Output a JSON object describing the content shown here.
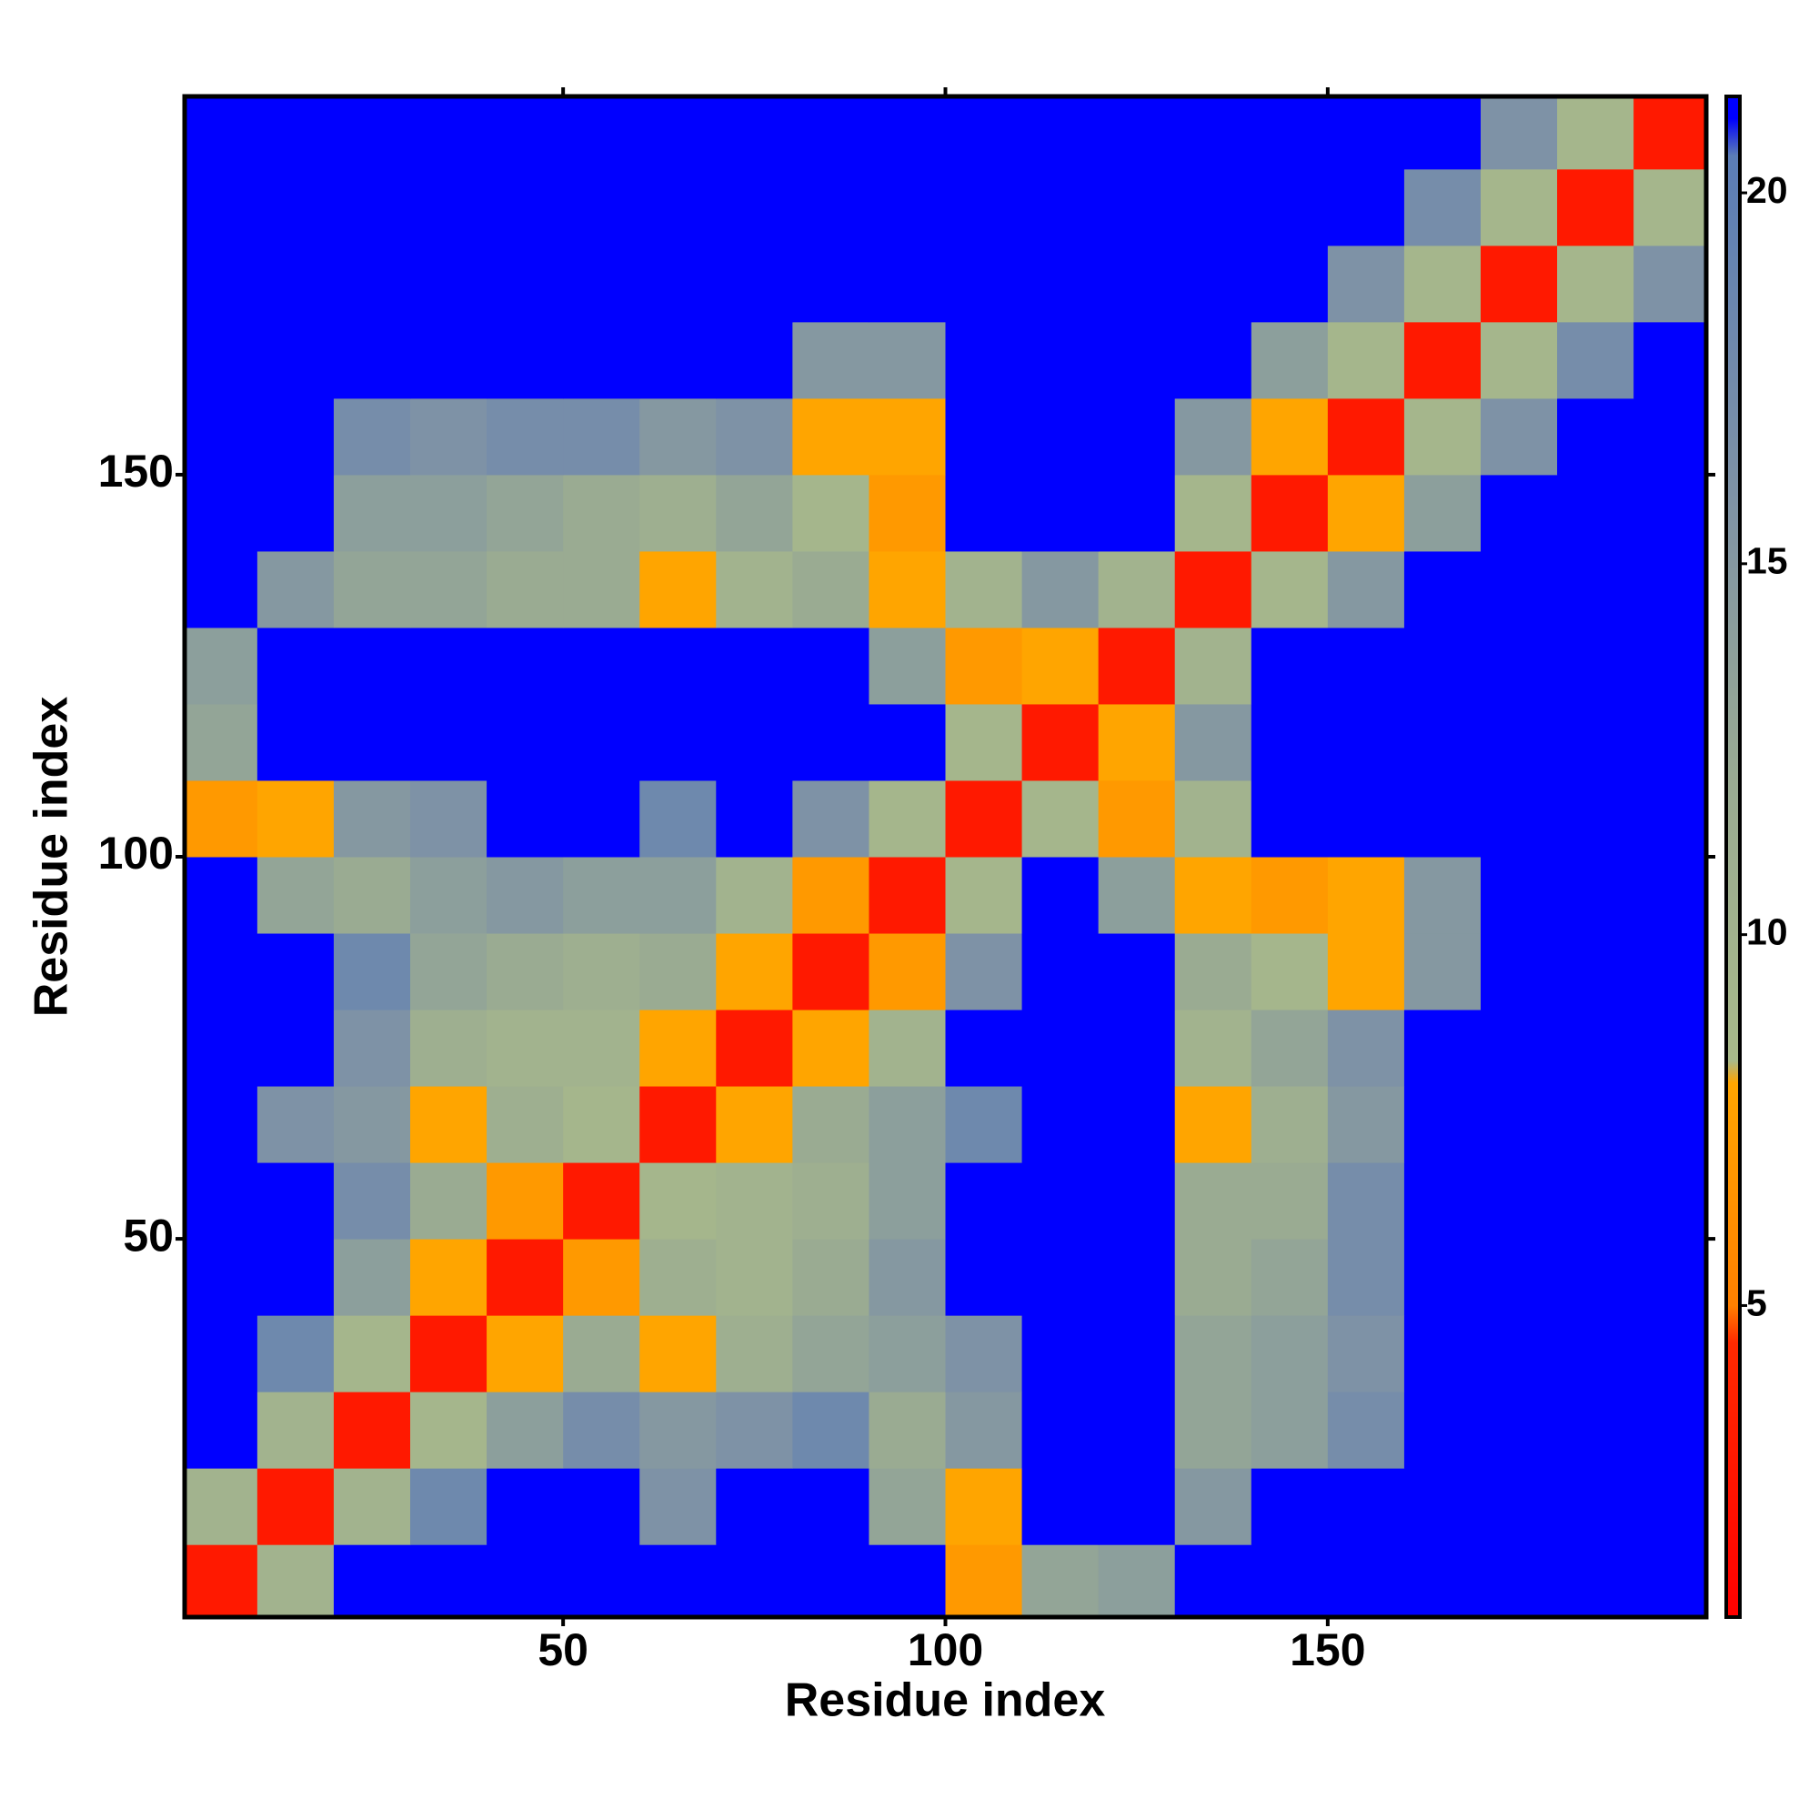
{
  "chart_data": {
    "type": "heatmap",
    "x_label": "Residue index",
    "y_label": "Residue index",
    "xlim": [
      0.5,
      199.5
    ],
    "ylim": [
      0.5,
      199.5
    ],
    "xticks": [
      50,
      100,
      150
    ],
    "yticks": [
      50,
      100,
      150
    ],
    "x_edges": [
      0,
      10,
      20,
      30,
      40,
      50,
      60,
      70,
      80,
      90,
      100,
      110,
      120,
      130,
      140,
      150,
      160,
      170,
      180,
      190,
      200
    ],
    "y_edges": [
      0,
      10,
      20,
      30,
      40,
      50,
      60,
      70,
      80,
      90,
      100,
      110,
      120,
      130,
      140,
      150,
      160,
      170,
      180,
      190,
      200
    ],
    "z": [
      [
        3,
        10,
        21,
        21,
        21,
        21,
        21,
        21,
        21,
        21,
        7,
        13,
        14,
        21,
        21,
        21,
        21,
        21,
        21,
        21
      ],
      [
        10,
        3,
        10,
        18,
        21,
        21,
        16,
        21,
        21,
        13,
        8,
        21,
        21,
        15,
        21,
        21,
        21,
        21,
        21,
        21
      ],
      [
        21,
        10,
        3,
        9,
        14,
        17,
        15,
        16,
        18,
        12,
        15,
        21,
        21,
        13,
        14,
        17,
        21,
        21,
        21,
        21
      ],
      [
        21,
        18,
        9,
        3,
        8,
        12,
        8,
        11,
        13,
        14,
        16,
        21,
        21,
        13,
        14,
        16,
        21,
        21,
        21,
        21
      ],
      [
        21,
        21,
        14,
        8,
        3,
        7,
        11,
        10,
        12,
        15,
        21,
        21,
        21,
        12,
        13,
        17,
        21,
        21,
        21,
        21
      ],
      [
        21,
        21,
        17,
        12,
        7,
        3,
        9,
        10,
        11,
        14,
        21,
        21,
        21,
        12,
        12,
        17,
        21,
        21,
        21,
        21
      ],
      [
        21,
        16,
        15,
        8,
        11,
        9,
        3,
        8,
        12,
        14,
        18,
        21,
        21,
        8,
        11,
        15,
        21,
        21,
        21,
        21
      ],
      [
        21,
        21,
        16,
        11,
        10,
        10,
        8,
        3,
        8,
        10,
        21,
        21,
        21,
        10,
        13,
        16,
        21,
        21,
        21,
        21
      ],
      [
        21,
        21,
        18,
        13,
        12,
        11,
        12,
        8,
        3,
        7,
        16,
        21,
        21,
        12,
        9,
        8,
        15,
        21,
        21,
        21
      ],
      [
        21,
        13,
        12,
        14,
        15,
        14,
        14,
        10,
        7,
        3,
        9,
        21,
        14,
        8,
        7,
        8,
        15,
        21,
        21,
        21
      ],
      [
        7,
        8,
        15,
        16,
        21,
        21,
        18,
        21,
        16,
        9,
        3,
        9,
        7,
        10,
        21,
        21,
        21,
        21,
        21,
        21
      ],
      [
        13,
        21,
        21,
        21,
        21,
        21,
        21,
        21,
        21,
        21,
        9,
        3,
        8,
        15,
        21,
        21,
        21,
        21,
        21,
        21
      ],
      [
        14,
        21,
        21,
        21,
        21,
        21,
        21,
        21,
        21,
        14,
        7,
        8,
        3,
        10,
        21,
        21,
        21,
        21,
        21,
        21
      ],
      [
        21,
        15,
        13,
        13,
        12,
        12,
        8,
        10,
        12,
        8,
        10,
        15,
        10,
        3,
        9,
        15,
        21,
        21,
        21,
        21
      ],
      [
        21,
        21,
        14,
        14,
        13,
        12,
        11,
        13,
        9,
        7,
        21,
        21,
        21,
        9,
        3,
        8,
        14,
        21,
        21,
        21
      ],
      [
        21,
        21,
        17,
        16,
        17,
        17,
        15,
        16,
        8,
        8,
        21,
        21,
        21,
        15,
        8,
        3,
        9,
        16,
        21,
        21
      ],
      [
        21,
        21,
        21,
        21,
        21,
        21,
        21,
        21,
        15,
        15,
        21,
        21,
        21,
        21,
        14,
        9,
        3,
        9,
        17,
        21
      ],
      [
        21,
        21,
        21,
        21,
        21,
        21,
        21,
        21,
        21,
        21,
        21,
        21,
        21,
        21,
        21,
        16,
        9,
        3,
        9,
        16
      ],
      [
        21,
        21,
        21,
        21,
        21,
        21,
        21,
        21,
        21,
        21,
        21,
        21,
        21,
        21,
        21,
        21,
        17,
        9,
        3,
        9
      ],
      [
        21,
        21,
        21,
        21,
        21,
        21,
        21,
        21,
        21,
        21,
        21,
        21,
        21,
        21,
        21,
        21,
        21,
        16,
        9,
        3
      ]
    ],
    "clim": [
      0.8,
      21.3
    ],
    "cticks": [
      5,
      10,
      15,
      20
    ],
    "colorscale": [
      [
        0.8,
        "#ff0000"
      ],
      [
        4.5,
        "#ff2a00"
      ],
      [
        5,
        "#ff8000"
      ],
      [
        8,
        "#ffa500"
      ],
      [
        8.3,
        "#a8b98a"
      ],
      [
        12,
        "#9aab92"
      ],
      [
        16,
        "#7e92a6"
      ],
      [
        20.5,
        "#5b7db6"
      ],
      [
        21,
        "#0000ff"
      ]
    ]
  }
}
